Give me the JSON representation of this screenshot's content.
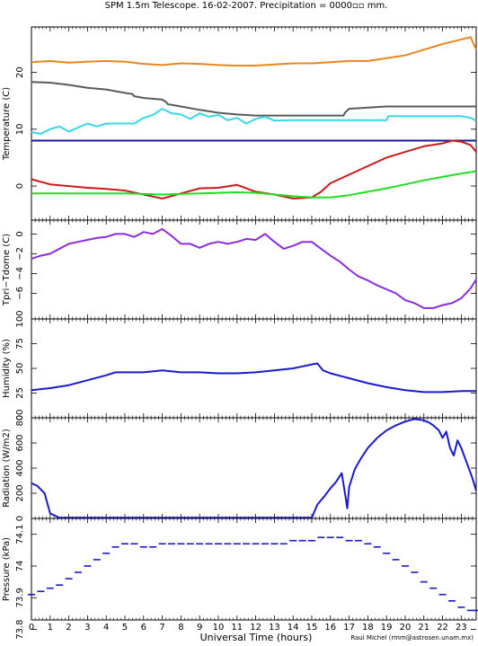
{
  "title": "SPM 1.5m Telescope. 16-02-2007. Precipitation = 0000▫▫ mm.",
  "credit": "Raul Michel (rmm@astrosen.unam.mx)",
  "x_axis": {
    "label": "Universal Time (hours)",
    "range": [
      0,
      23.8
    ],
    "ticks": [
      0,
      1,
      2,
      3,
      4,
      5,
      6,
      7,
      8,
      9,
      10,
      11,
      12,
      13,
      14,
      15,
      16,
      17,
      18,
      19,
      20,
      21,
      22,
      23
    ]
  },
  "colors": {
    "orange": "#e8871e",
    "gray": "#5a5a5a",
    "cyan": "#35d8e4",
    "navy": "#1a1a9a",
    "red": "#cc1a1a",
    "green": "#22dd22",
    "purple": "#8a2be2",
    "blue": "#1a1acc"
  },
  "chart_data": [
    {
      "type": "line",
      "ylabel": "Temperature (C)",
      "ylim": [
        -6,
        28
      ],
      "yticks": [
        0,
        10,
        20
      ],
      "series": [
        {
          "color_key": "orange",
          "x": [
            0,
            1,
            2,
            3,
            4,
            5,
            6,
            7,
            8,
            9,
            10,
            11,
            12,
            13,
            14,
            15,
            16,
            17,
            18,
            19,
            20,
            21,
            22,
            23,
            23.5,
            23.8
          ],
          "y": [
            21.8,
            22.0,
            21.7,
            21.9,
            22.0,
            21.9,
            21.5,
            21.3,
            21.6,
            21.5,
            21.3,
            21.2,
            21.2,
            21.4,
            21.6,
            21.6,
            21.8,
            22.0,
            22.0,
            22.5,
            23.0,
            24.0,
            25.0,
            25.8,
            26.2,
            24.0
          ]
        },
        {
          "color_key": "gray",
          "x": [
            0,
            1,
            2,
            3,
            4,
            5,
            5.4,
            5.5,
            6,
            7,
            7.2,
            7.3,
            8,
            9,
            10,
            11,
            12,
            13,
            14,
            15,
            16,
            16.7,
            16.8,
            17,
            18,
            19,
            20,
            21,
            22,
            23,
            23.8
          ],
          "y": [
            18.3,
            18.2,
            17.8,
            17.3,
            17.0,
            16.4,
            16.2,
            15.8,
            15.5,
            15.2,
            14.8,
            14.4,
            14.0,
            13.4,
            12.9,
            12.6,
            12.4,
            12.4,
            12.4,
            12.4,
            12.4,
            12.4,
            13.0,
            13.6,
            13.8,
            14.0,
            14.0,
            14.0,
            14.0,
            14.0,
            14.0
          ]
        },
        {
          "color_key": "cyan",
          "x": [
            0,
            0.5,
            1,
            1.5,
            2,
            2.5,
            3,
            3.5,
            4,
            4.5,
            5,
            5.5,
            6,
            6.5,
            7,
            7.5,
            8,
            8.5,
            9,
            9.5,
            10,
            10.5,
            11,
            11.5,
            12,
            12.5,
            13,
            14,
            15,
            16,
            17,
            18,
            19,
            19.1,
            20,
            21,
            22,
            23,
            23.5,
            23.8
          ],
          "y": [
            9.5,
            9.2,
            10.0,
            10.5,
            9.6,
            10.3,
            11.0,
            10.5,
            11.0,
            11.0,
            11.0,
            11.0,
            12.0,
            12.5,
            13.6,
            12.8,
            12.6,
            11.8,
            12.8,
            12.2,
            12.5,
            11.6,
            12.0,
            11.0,
            11.8,
            12.2,
            11.5,
            11.6,
            11.6,
            11.6,
            11.6,
            11.6,
            11.6,
            12.3,
            12.3,
            12.3,
            12.3,
            12.3,
            12.0,
            11.5
          ]
        },
        {
          "color_key": "navy",
          "x": [
            0,
            23.8
          ],
          "y": [
            8.0,
            8.0
          ]
        },
        {
          "color_key": "red",
          "x": [
            0,
            1,
            2,
            3,
            4,
            5,
            6,
            7,
            8,
            9,
            10,
            11,
            12,
            13,
            14,
            15,
            15.5,
            16,
            17,
            18,
            19,
            20,
            21,
            22,
            22.5,
            23,
            23.5,
            23.8
          ],
          "y": [
            1.2,
            0.3,
            0.0,
            -0.3,
            -0.5,
            -0.8,
            -1.5,
            -2.2,
            -1.3,
            -0.4,
            -0.3,
            0.2,
            -1.0,
            -1.5,
            -2.2,
            -2.0,
            -1.0,
            0.5,
            2.0,
            3.5,
            5.0,
            6.0,
            7.0,
            7.5,
            8.0,
            7.8,
            7.2,
            6.0
          ]
        },
        {
          "color_key": "green",
          "x": [
            0,
            1,
            2,
            3,
            4,
            5,
            6,
            7,
            8,
            9,
            10,
            11,
            12,
            13,
            14,
            15,
            16,
            17,
            18,
            19,
            20,
            21,
            22,
            23,
            23.8
          ],
          "y": [
            -1.3,
            -1.3,
            -1.3,
            -1.3,
            -1.3,
            -1.3,
            -1.4,
            -1.5,
            -1.4,
            -1.3,
            -1.2,
            -1.1,
            -1.2,
            -1.5,
            -1.8,
            -2.0,
            -2.0,
            -1.6,
            -1.0,
            -0.4,
            0.3,
            1.0,
            1.6,
            2.2,
            2.6
          ]
        }
      ]
    },
    {
      "type": "line",
      "ylabel": "Tpri−Tdome (C)",
      "ylim": [
        -8.6,
        1.4
      ],
      "yticks": [
        -6,
        -4,
        -2,
        0
      ],
      "series": [
        {
          "color_key": "purple",
          "x": [
            0,
            0.5,
            1,
            1.5,
            2,
            2.5,
            3,
            3.5,
            4,
            4.5,
            5,
            5.5,
            6,
            6.5,
            7,
            7.5,
            8,
            8.5,
            9,
            9.5,
            10,
            10.5,
            11,
            11.5,
            12,
            12.5,
            13,
            13.5,
            14,
            14.5,
            15,
            15.5,
            16,
            16.5,
            17,
            17.5,
            18,
            18.5,
            19,
            19.5,
            20,
            20.5,
            21,
            21.5,
            22,
            22.5,
            23,
            23.5,
            23.8
          ],
          "y": [
            -2.5,
            -2.2,
            -2.0,
            -1.5,
            -1.0,
            -0.8,
            -0.6,
            -0.4,
            -0.3,
            0.0,
            0.0,
            -0.3,
            0.2,
            0.0,
            0.5,
            -0.2,
            -1.0,
            -1.0,
            -1.4,
            -1.0,
            -0.8,
            -1.0,
            -0.8,
            -0.5,
            -0.6,
            0.0,
            -0.8,
            -1.5,
            -1.2,
            -0.8,
            -0.8,
            -1.5,
            -2.2,
            -2.8,
            -3.6,
            -4.3,
            -4.7,
            -5.2,
            -5.6,
            -6.0,
            -6.7,
            -7.0,
            -7.5,
            -7.5,
            -7.2,
            -7.0,
            -6.5,
            -5.5,
            -4.6
          ]
        }
      ]
    },
    {
      "type": "line",
      "ylabel": "Humidity (%)",
      "ylim": [
        0,
        100
      ],
      "yticks": [
        0,
        25,
        50,
        75,
        100
      ],
      "series": [
        {
          "color_key": "blue",
          "x": [
            0,
            1,
            2,
            3,
            4,
            4.5,
            5,
            6,
            7,
            8,
            9,
            10,
            11,
            12,
            13,
            14,
            14.5,
            15,
            15.3,
            15.6,
            16,
            17,
            18,
            19,
            20,
            21,
            22,
            23,
            23.8
          ],
          "y": [
            28,
            30,
            33,
            38,
            43,
            46,
            46,
            46,
            48,
            46,
            46,
            45,
            45,
            46,
            48,
            50,
            52,
            54,
            55,
            48,
            45,
            40,
            35,
            31,
            28,
            26,
            26,
            27,
            27
          ]
        }
      ]
    },
    {
      "type": "line",
      "ylabel": "Radiation (W/m2)",
      "ylim": [
        0,
        800
      ],
      "yticks": [
        0,
        200,
        400,
        600,
        800
      ],
      "series": [
        {
          "color_key": "blue",
          "x": [
            0,
            0.3,
            0.7,
            1,
            1.5,
            2,
            3,
            4,
            5,
            6,
            7,
            8,
            9,
            10,
            11,
            12,
            13,
            14,
            15,
            15.3,
            15.7,
            16,
            16.3,
            16.6,
            16.8,
            16.9,
            17,
            17.3,
            17.6,
            18,
            18.5,
            19,
            19.5,
            20,
            20.5,
            21,
            21.3,
            21.5,
            21.8,
            22,
            22.2,
            22.4,
            22.6,
            22.8,
            23,
            23.3,
            23.6,
            23.8
          ],
          "y": [
            280,
            260,
            200,
            40,
            5,
            5,
            5,
            5,
            5,
            5,
            5,
            5,
            5,
            5,
            5,
            5,
            5,
            5,
            5,
            110,
            180,
            240,
            290,
            360,
            180,
            80,
            250,
            390,
            470,
            560,
            640,
            700,
            740,
            770,
            790,
            780,
            760,
            740,
            700,
            640,
            690,
            560,
            500,
            620,
            560,
            440,
            320,
            220
          ]
        }
      ]
    },
    {
      "type": "scatter",
      "ylabel": "Pressure (kPa)",
      "ylim": [
        73.83,
        74.15
      ],
      "yticks": [
        73.8,
        73.9,
        74,
        74.1
      ],
      "tick_labels": [
        "73.8",
        "73.9",
        "74",
        "74.1"
      ],
      "series": [
        {
          "color_key": "blue",
          "x": [
            0,
            0.5,
            1,
            1.5,
            2,
            2.5,
            3,
            3.5,
            4,
            4.5,
            5,
            5.5,
            6,
            6.5,
            7,
            7.5,
            8,
            8.5,
            9,
            9.5,
            10,
            10.5,
            11,
            11.5,
            12,
            12.5,
            13,
            13.5,
            14,
            14.5,
            15,
            15.5,
            16,
            16.5,
            17,
            17.5,
            18,
            18.5,
            19,
            19.5,
            20,
            20.5,
            21,
            21.5,
            22,
            22.5,
            23,
            23.5,
            23.8
          ],
          "y": [
            73.91,
            73.92,
            73.93,
            73.94,
            73.96,
            73.98,
            74.0,
            74.02,
            74.04,
            74.06,
            74.07,
            74.07,
            74.06,
            74.06,
            74.07,
            74.07,
            74.07,
            74.07,
            74.07,
            74.07,
            74.07,
            74.07,
            74.07,
            74.07,
            74.07,
            74.07,
            74.07,
            74.07,
            74.08,
            74.08,
            74.08,
            74.09,
            74.09,
            74.09,
            74.08,
            74.08,
            74.07,
            74.06,
            74.04,
            74.02,
            74.0,
            73.98,
            73.95,
            73.93,
            73.91,
            73.89,
            73.87,
            73.86,
            73.86
          ]
        }
      ]
    }
  ]
}
